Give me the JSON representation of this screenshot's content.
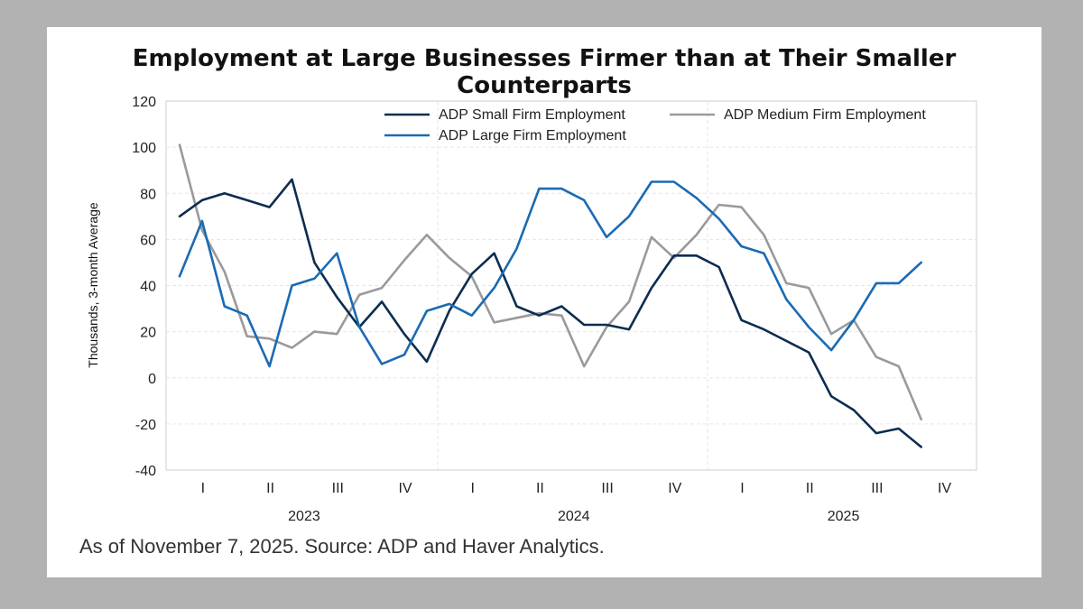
{
  "chart_data": {
    "type": "line",
    "title": "Employment at Large Businesses Firmer than at Their Smaller Counterparts",
    "ylabel": "Thousands, 3-month Average",
    "xlabel": "",
    "ylim": [
      -40,
      120
    ],
    "yticks": [
      120,
      100,
      80,
      60,
      40,
      20,
      0,
      -20,
      -40
    ],
    "x_periods": [
      "Jan 2023",
      "Feb 2023",
      "Mar 2023",
      "Apr 2023",
      "May 2023",
      "Jun 2023",
      "Jul 2023",
      "Aug 2023",
      "Sep 2023",
      "Oct 2023",
      "Nov 2023",
      "Dec 2023",
      "Jan 2024",
      "Feb 2024",
      "Mar 2024",
      "Apr 2024",
      "May 2024",
      "Jun 2024",
      "Jul 2024",
      "Aug 2024",
      "Sep 2024",
      "Oct 2024",
      "Nov 2024",
      "Dec 2024",
      "Jan 2025",
      "Feb 2025",
      "Mar 2025",
      "Apr 2025",
      "May 2025",
      "Jun 2025",
      "Jul 2025",
      "Aug 2025",
      "Sep 2025",
      "Oct 2025"
    ],
    "quarter_labels": [
      "I",
      "II",
      "III",
      "IV",
      "I",
      "II",
      "III",
      "IV",
      "I",
      "II",
      "III",
      "IV"
    ],
    "year_labels": [
      "2023",
      "2024",
      "2025"
    ],
    "grid": true,
    "legend_position": "top",
    "series": [
      {
        "name": "ADP Small Firm Employment",
        "color": "#0b2d4f",
        "values": [
          70,
          77,
          80,
          77,
          74,
          86,
          50,
          35,
          22,
          33,
          19,
          7,
          29,
          45,
          54,
          31,
          27,
          31,
          23,
          23,
          21,
          39,
          53,
          53,
          48,
          25,
          21,
          16,
          11,
          -8,
          -14,
          -24,
          -22,
          -30
        ]
      },
      {
        "name": "ADP Medium Firm Employment",
        "color": "#9a9a9a",
        "values": [
          101,
          64,
          46,
          18,
          17,
          13,
          20,
          19,
          36,
          39,
          51,
          62,
          52,
          44,
          24,
          26,
          28,
          27,
          5,
          22,
          33,
          61,
          52,
          62,
          75,
          74,
          62,
          41,
          39,
          19,
          25,
          9,
          5,
          -18
        ]
      },
      {
        "name": "ADP Large Firm Employment",
        "color": "#1a6ab4",
        "values": [
          44,
          68,
          31,
          27,
          5,
          40,
          43,
          54,
          22,
          6,
          10,
          29,
          32,
          27,
          39,
          56,
          82,
          82,
          77,
          61,
          70,
          85,
          85,
          78,
          69,
          57,
          54,
          34,
          22,
          12,
          25,
          41,
          41,
          50
        ]
      }
    ]
  },
  "source_note": "As of November 7, 2025. Source: ADP and Haver Analytics."
}
